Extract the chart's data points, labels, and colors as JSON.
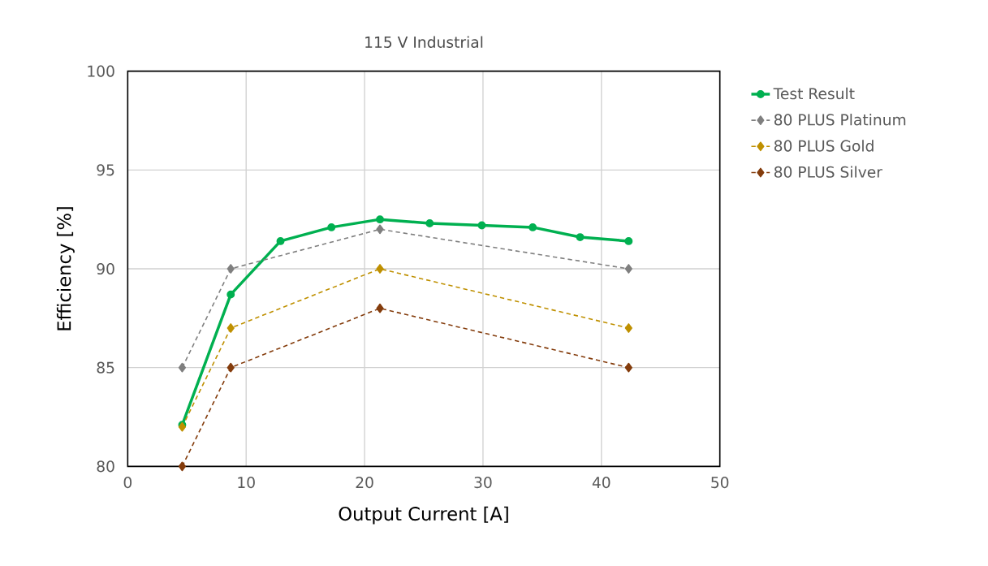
{
  "chart_data": {
    "type": "line",
    "title": "115 V Industrial",
    "xlabel": "Output Current  [A]",
    "ylabel": "Efficiency  [%]",
    "xlim": [
      0,
      50
    ],
    "xticks": [
      0,
      10,
      20,
      30,
      40,
      50
    ],
    "ylim": [
      80,
      100
    ],
    "yticks": [
      80,
      85,
      90,
      95,
      100
    ],
    "grid": true,
    "legend": "right",
    "series": [
      {
        "name": "Test Result",
        "color": "#00b050",
        "marker": "circle",
        "line_style": "solid",
        "x": [
          4.6,
          8.7,
          12.9,
          17.2,
          21.3,
          25.5,
          29.9,
          34.2,
          38.2,
          42.3
        ],
        "values": [
          82.1,
          88.7,
          91.4,
          92.1,
          92.5,
          92.3,
          92.2,
          92.1,
          91.6,
          91.4
        ]
      },
      {
        "name": "80 PLUS Platinum",
        "color": "#7f7f7f",
        "marker": "diamond",
        "line_style": "dashed",
        "x": [
          4.6,
          8.7,
          21.3,
          42.3
        ],
        "values": [
          85,
          90,
          92,
          90
        ]
      },
      {
        "name": "80 PLUS Gold",
        "color": "#bf9000",
        "marker": "diamond",
        "line_style": "dashed",
        "x": [
          4.6,
          8.7,
          21.3,
          42.3
        ],
        "values": [
          82,
          87,
          90,
          87
        ]
      },
      {
        "name": "80 PLUS Silver",
        "color": "#843c0c",
        "marker": "diamond",
        "line_style": "dashed",
        "x": [
          4.6,
          8.7,
          21.3,
          42.3
        ],
        "values": [
          80,
          85,
          88,
          85
        ]
      }
    ]
  }
}
